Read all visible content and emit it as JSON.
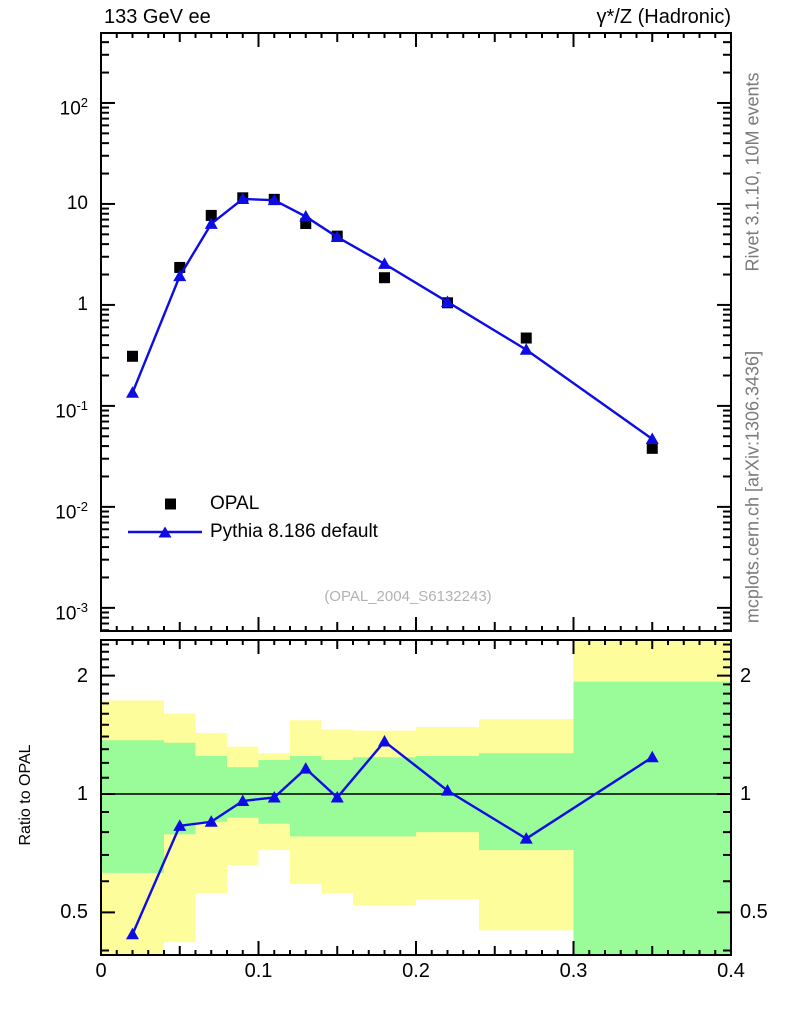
{
  "titles": {
    "left": "133 GeV ee",
    "right": "γ*/Z (Hadronic)"
  },
  "credits": {
    "top_right": "Rivet 3.1.10,  10M events",
    "bottom_right": "mcplots.cern.ch [arXiv:1306.3436]"
  },
  "watermark": "(OPAL_2004_S6132243)",
  "legend": {
    "items": [
      {
        "label": "OPAL",
        "marker": "black-square"
      },
      {
        "label": "Pythia 8.186 default",
        "marker": "blue-line-triangle"
      }
    ]
  },
  "colors": {
    "band_yellow": "#fdfd9b",
    "band_green": "#99fc99",
    "mc_blue": "#0d0de3",
    "data_black": "#000000",
    "frame": "#000000",
    "credit_gray": "#7b7b7b",
    "watermark_gray": "#b2b2b2"
  },
  "chart_data": {
    "type": "line",
    "title": "133 GeV ee",
    "process_label": "γ*/Z (Hadronic)",
    "xlabel": "",
    "xlim": [
      0,
      0.4
    ],
    "x_ticks": [
      {
        "v": 0,
        "label": "0"
      },
      {
        "v": 0.1,
        "label": "0.1"
      },
      {
        "v": 0.2,
        "label": "0.2"
      },
      {
        "v": 0.3,
        "label": "0.3"
      },
      {
        "v": 0.4,
        "label": "0.4"
      }
    ],
    "x_minor_step": 0.01,
    "x_medium_step": 0.05,
    "panels": [
      {
        "name": "main",
        "yscale": "log",
        "ylim": [
          0.00059,
          493
        ],
        "y_ticks": [
          {
            "v": 100,
            "label": "10^{2}"
          },
          {
            "v": 10,
            "label": "10"
          },
          {
            "v": 1,
            "label": "1"
          },
          {
            "v": 0.1,
            "label": "10^{-1}"
          },
          {
            "v": 0.01,
            "label": "10^{-2}"
          },
          {
            "v": 0.001,
            "label": "10^{-3}"
          }
        ],
        "series": [
          {
            "name": "OPAL",
            "marker": "square",
            "color": "#000000",
            "draw_line": false,
            "x": [
              0.02,
              0.05,
              0.07,
              0.09,
              0.11,
              0.13,
              0.15,
              0.18,
              0.22,
              0.27,
              0.35
            ],
            "y": [
              0.31,
              2.35,
              7.7,
              11.5,
              11.1,
              6.4,
              4.8,
              1.86,
              1.05,
              0.47,
              0.038
            ]
          },
          {
            "name": "Pythia 8.186 default",
            "marker": "triangle-up",
            "color": "#0d0de3",
            "draw_line": true,
            "x": [
              0.02,
              0.05,
              0.07,
              0.09,
              0.11,
              0.13,
              0.15,
              0.18,
              0.22,
              0.27,
              0.35
            ],
            "y": [
              0.135,
              1.93,
              6.35,
              11.2,
              10.9,
              7.5,
              4.7,
              2.55,
              1.07,
              0.36,
              0.047
            ]
          }
        ]
      },
      {
        "name": "ratio",
        "ylabel": "Ratio to OPAL",
        "yscale": "log",
        "ylim": [
          0.3896,
          2.464
        ],
        "y_ticks": [
          {
            "v": 2,
            "label": "2"
          },
          {
            "v": 1,
            "label": "1"
          },
          {
            "v": 0.5,
            "label": "0.5"
          }
        ],
        "reference_line": 1,
        "bin_edges": [
          0,
          0.04,
          0.06,
          0.08,
          0.1,
          0.12,
          0.14,
          0.16,
          0.2,
          0.24,
          0.3,
          0.4
        ],
        "band_yellow": [
          [
            0.39,
            1.73
          ],
          [
            0.42,
            1.6
          ],
          [
            0.56,
            1.43
          ],
          [
            0.66,
            1.32
          ],
          [
            0.72,
            1.27
          ],
          [
            0.59,
            1.54
          ],
          [
            0.56,
            1.46
          ],
          [
            0.52,
            1.45
          ],
          [
            0.54,
            1.48
          ],
          [
            0.45,
            1.55
          ],
          [
            0.39,
            2.47
          ]
        ],
        "band_green": [
          [
            0.63,
            1.37
          ],
          [
            0.79,
            1.35
          ],
          [
            0.85,
            1.25
          ],
          [
            0.87,
            1.17
          ],
          [
            0.84,
            1.22
          ],
          [
            0.78,
            1.25
          ],
          [
            0.78,
            1.22
          ],
          [
            0.78,
            1.24
          ],
          [
            0.8,
            1.25
          ],
          [
            0.72,
            1.27
          ],
          [
            0.39,
            1.93
          ]
        ],
        "ratio_series": {
          "name": "Pythia 8.186 default / OPAL",
          "color": "#0d0de3",
          "x": [
            0.02,
            0.05,
            0.07,
            0.09,
            0.11,
            0.13,
            0.15,
            0.18,
            0.22,
            0.27,
            0.35
          ],
          "y": [
            0.44,
            0.83,
            0.85,
            0.96,
            0.98,
            1.16,
            0.98,
            1.36,
            1.02,
            0.77,
            1.24
          ]
        }
      }
    ]
  }
}
